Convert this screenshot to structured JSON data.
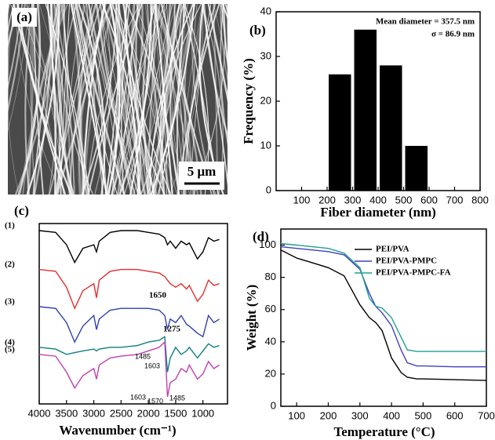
{
  "panel_a": {
    "label": "(a)",
    "scale_bar": "5 μm"
  },
  "chart_data": [
    {
      "type": "histogram",
      "panel_label": "(b)",
      "xlabel": "Fiber diameter (nm)",
      "ylabel": "Frequency (%)",
      "bins": [
        200,
        300,
        400,
        500,
        600
      ],
      "values": [
        26,
        36,
        28,
        10
      ],
      "color": "#000000",
      "xlim": [
        0,
        800
      ],
      "xticks": [
        100,
        200,
        300,
        400,
        500,
        600,
        700,
        800
      ],
      "ylim": [
        0,
        40
      ],
      "yticks": [
        0,
        10,
        20,
        30,
        40
      ],
      "annotations": [
        "Mean diameter = 357.5 nm",
        "σ = 86.9 nm"
      ]
    },
    {
      "type": "line",
      "panel_label": "(c)",
      "xlabel": "Wavenumber (cm⁻¹)",
      "x": [
        4000,
        3700,
        3500,
        3350,
        3200,
        3000,
        2950,
        2900,
        2700,
        2500,
        2200,
        2000,
        1800,
        1700,
        1650,
        1600,
        1500,
        1400,
        1300,
        1250,
        1100,
        1000,
        900,
        800,
        700
      ],
      "xlim": [
        4000,
        550
      ],
      "xticks": [
        4000,
        3500,
        3000,
        2500,
        2000,
        1500,
        1000
      ],
      "series": [
        {
          "name": "(1)",
          "color": "#000000",
          "values": [
            96,
            95,
            88,
            78,
            86,
            88,
            84,
            90,
            95,
            96,
            96,
            95,
            94,
            92,
            88,
            90,
            86,
            90,
            88,
            89,
            80,
            84,
            92,
            90,
            91
          ]
        },
        {
          "name": "(2)",
          "color": "#e03030",
          "values": [
            74,
            73,
            64,
            52,
            62,
            66,
            58,
            68,
            73,
            74,
            74,
            73,
            72,
            70,
            68,
            66,
            64,
            66,
            63,
            65,
            56,
            60,
            68,
            65,
            66
          ]
        },
        {
          "name": "(3)",
          "color": "#3040b0",
          "values": [
            53,
            52,
            44,
            33,
            42,
            48,
            40,
            46,
            51,
            52,
            52,
            52,
            51,
            48,
            40,
            46,
            44,
            48,
            43,
            42,
            38,
            36,
            48,
            44,
            46
          ]
        },
        {
          "name": "(4)",
          "color": "#108080",
          "values": [
            30,
            29,
            26,
            27,
            28,
            29,
            28,
            29,
            30,
            30,
            31,
            33,
            34,
            36,
            16,
            24,
            30,
            26,
            28,
            30,
            24,
            28,
            32,
            30,
            31
          ]
        },
        {
          "name": "(5)",
          "color": "#c040b0",
          "values": [
            26,
            25,
            16,
            7,
            14,
            18,
            12,
            20,
            24,
            25,
            26,
            28,
            30,
            33,
            2,
            10,
            12,
            18,
            16,
            20,
            12,
            15,
            22,
            18,
            20
          ]
        }
      ],
      "annotations": [
        "1650",
        "1275",
        "1485",
        "1603",
        "1603",
        "1570",
        "1485"
      ]
    },
    {
      "type": "line",
      "panel_label": "(d)",
      "xlabel": "Temperature (°C)",
      "ylabel": "Weight (%)",
      "x": [
        50,
        100,
        150,
        200,
        250,
        300,
        330,
        350,
        370,
        400,
        430,
        450,
        480,
        500,
        600,
        700
      ],
      "xlim": [
        50,
        700
      ],
      "xticks": [
        100,
        200,
        300,
        400,
        500,
        600,
        700
      ],
      "ylim": [
        0,
        110
      ],
      "yticks": [
        0,
        20,
        40,
        60,
        80,
        100
      ],
      "legend": "upper right",
      "series": [
        {
          "name": "PEI/PVA",
          "color": "#000000",
          "values": [
            97,
            92,
            89,
            86,
            81,
            63,
            55,
            52,
            47,
            30,
            21,
            18,
            17,
            17,
            16.5,
            16
          ]
        },
        {
          "name": "PEI/PVA-PMPC",
          "color": "#4040c0",
          "values": [
            99,
            98,
            97,
            96,
            94,
            85,
            70,
            62,
            58,
            50,
            35,
            27,
            25,
            25,
            24.5,
            24.5
          ]
        },
        {
          "name": "PEI/PVA-PMPC-FA",
          "color": "#20a090",
          "values": [
            101,
            100,
            99,
            98,
            95,
            86,
            67,
            62,
            61,
            55,
            43,
            35,
            34,
            34,
            34,
            34
          ]
        }
      ]
    }
  ]
}
